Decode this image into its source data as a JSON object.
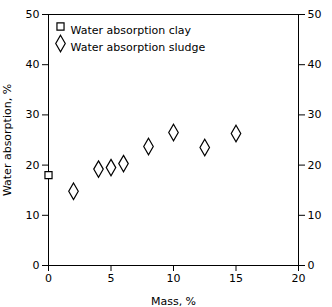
{
  "chart_data": {
    "type": "scatter",
    "xlabel": "Mass, %",
    "ylabel": "Water absorption, %",
    "xlim": [
      0,
      20
    ],
    "ylim": [
      0,
      50
    ],
    "xticks": [
      0,
      5,
      10,
      15,
      20
    ],
    "yticks": [
      0,
      10,
      20,
      30,
      40,
      50
    ],
    "y2lim": [
      0,
      50
    ],
    "y2ticks": [
      0,
      10,
      20,
      30,
      40,
      50
    ],
    "grid": false,
    "legend": "upper left",
    "series": [
      {
        "name": "Water absorption clay",
        "color": "#000000",
        "marker": "square",
        "x": [
          0
        ],
        "values": [
          18.0
        ]
      },
      {
        "name": "Water absorption sludge",
        "color": "#000000",
        "marker": "diamond",
        "x": [
          2,
          4,
          5,
          6,
          8,
          10,
          12.5,
          15
        ],
        "values": [
          14.8,
          19.2,
          19.5,
          20.3,
          23.7,
          26.5,
          23.5,
          26.3
        ]
      }
    ]
  }
}
